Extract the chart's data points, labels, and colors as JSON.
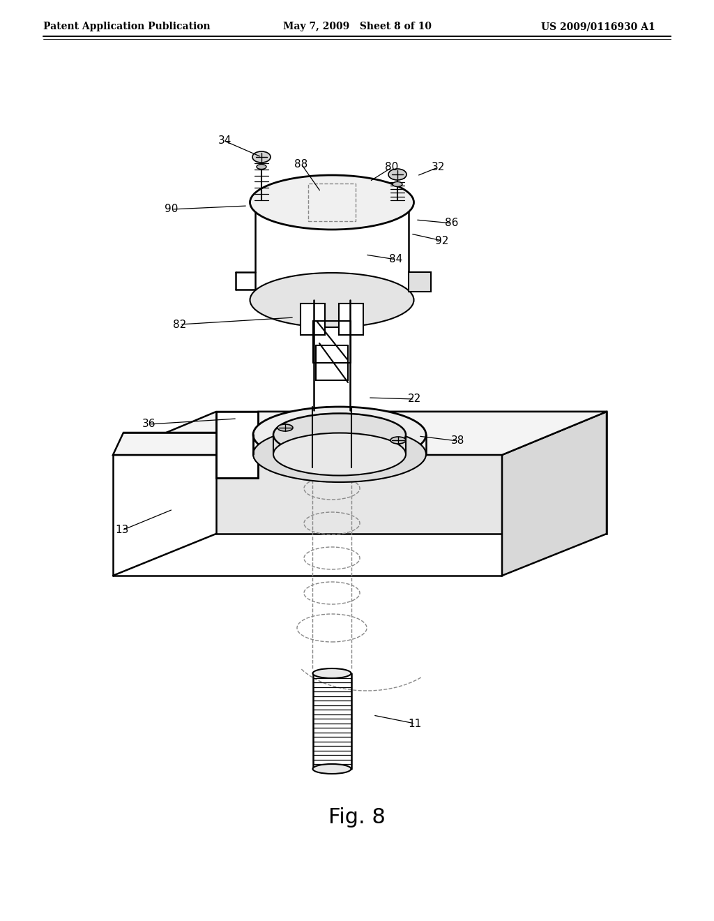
{
  "header_left": "Patent Application Publication",
  "header_center": "May 7, 2009   Sheet 8 of 10",
  "header_right": "US 2009/0116930 A1",
  "fig_label": "Fig. 8",
  "bg": "#ffffff",
  "lc": "#000000",
  "dc": "#888888"
}
